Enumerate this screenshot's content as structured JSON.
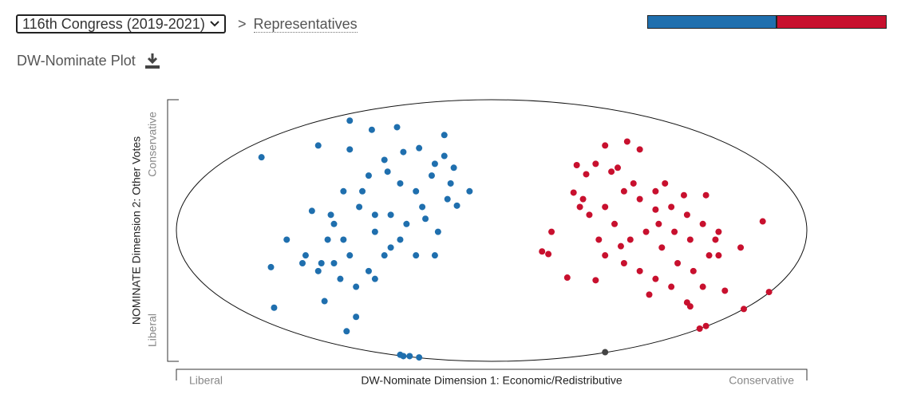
{
  "header": {
    "congress": "116th Congress (2019-2021)",
    "separator": ">",
    "chamber": "Representatives",
    "seat_bar": {
      "values": [
        235,
        199
      ],
      "colors": [
        "#1f6fae",
        "#c8102e"
      ]
    }
  },
  "chart_data": {
    "type": "scatter",
    "title": "DW-Nominate Plot",
    "x_label": "DW-Nominate Dimension 1: Economic/Redistributive",
    "y_label": "NOMINATE Dimension 2: Other Votes",
    "x_end_labels": [
      "Liberal",
      "Conservative"
    ],
    "y_end_labels": [
      "Liberal",
      "Conservative"
    ],
    "xlim": [
      -1,
      1
    ],
    "ylim": [
      -1,
      1
    ],
    "series": [
      {
        "color": "#1f6fae",
        "x": [
          -0.73,
          -0.45,
          -0.38,
          -0.3,
          -0.15,
          -0.55,
          -0.45,
          -0.07,
          -0.69,
          -0.46,
          -0.43,
          -0.53,
          -0.7,
          -0.65,
          -0.6,
          -0.52,
          -0.5,
          -0.42,
          -0.37,
          -0.32,
          -0.27,
          -0.22,
          -0.17,
          -0.14,
          -0.19,
          -0.29,
          -0.34,
          -0.39,
          -0.47,
          -0.51,
          -0.45,
          -0.39,
          -0.34,
          -0.24,
          -0.18,
          -0.55,
          -0.48,
          -0.43,
          -0.37,
          -0.29,
          -0.24,
          -0.12,
          -0.15,
          -0.33,
          -0.28,
          -0.23,
          -0.18,
          -0.41,
          -0.47,
          -0.57,
          -0.59,
          -0.54,
          -0.29,
          -0.28,
          -0.26,
          -0.23,
          -0.5,
          -0.37,
          -0.32,
          -0.21,
          -0.13,
          -0.11
        ],
        "values": [
          0.56,
          0.84,
          0.77,
          0.79,
          0.73,
          0.65,
          0.62,
          0.3,
          -0.59,
          -0.77,
          -0.66,
          -0.54,
          -0.28,
          -0.07,
          -0.25,
          -0.07,
          0.05,
          0.18,
          -0.01,
          -0.13,
          0.05,
          0.18,
          -0.01,
          0.24,
          0.42,
          0.36,
          0.54,
          0.42,
          0.3,
          0.12,
          -0.19,
          -0.31,
          -0.19,
          -0.19,
          -0.19,
          -0.31,
          -0.37,
          -0.43,
          -0.37,
          -0.07,
          0.3,
          0.48,
          0.57,
          0.45,
          0.6,
          0.63,
          0.51,
          0.3,
          -0.07,
          0.15,
          -0.19,
          -0.25,
          -0.95,
          -0.96,
          -0.96,
          -0.97,
          -0.25,
          0.12,
          0.12,
          0.09,
          0.36,
          0.19
        ]
      },
      {
        "color": "#c8102e",
        "x": [
          0.16,
          0.18,
          0.24,
          0.33,
          0.19,
          0.27,
          0.36,
          0.43,
          0.47,
          0.29,
          0.31,
          0.36,
          0.42,
          0.47,
          0.52,
          0.57,
          0.62,
          0.67,
          0.72,
          0.69,
          0.64,
          0.59,
          0.54,
          0.49,
          0.44,
          0.39,
          0.34,
          0.36,
          0.42,
          0.47,
          0.52,
          0.57,
          0.62,
          0.67,
          0.74,
          0.79,
          0.86,
          0.88,
          0.8,
          0.68,
          0.66,
          0.63,
          0.5,
          0.41,
          0.52,
          0.68,
          0.61,
          0.55,
          0.26,
          0.3,
          0.33,
          0.38,
          0.4,
          0.45,
          0.53,
          0.58,
          0.63,
          0.71,
          0.72,
          0.28
        ],
        "values": [
          -0.16,
          -0.18,
          -0.36,
          -0.38,
          -0.01,
          0.5,
          0.65,
          0.68,
          0.62,
          0.24,
          0.12,
          0.18,
          0.3,
          0.24,
          0.3,
          0.18,
          0.12,
          0.05,
          -0.01,
          -0.19,
          -0.31,
          -0.25,
          -0.13,
          -0.01,
          -0.07,
          0.05,
          -0.07,
          -0.19,
          -0.25,
          -0.31,
          -0.37,
          -0.43,
          -0.55,
          -0.43,
          -0.46,
          -0.13,
          0.07,
          -0.47,
          -0.6,
          -0.73,
          -0.75,
          -0.58,
          -0.49,
          -0.12,
          0.16,
          0.27,
          0.27,
          0.36,
          0.29,
          0.43,
          0.51,
          0.45,
          0.48,
          0.36,
          0.05,
          -0.01,
          -0.07,
          -0.07,
          -0.19,
          0.18
        ]
      },
      {
        "color": "#444444",
        "x": [
          0.36
        ],
        "values": [
          -0.93
        ]
      }
    ]
  }
}
